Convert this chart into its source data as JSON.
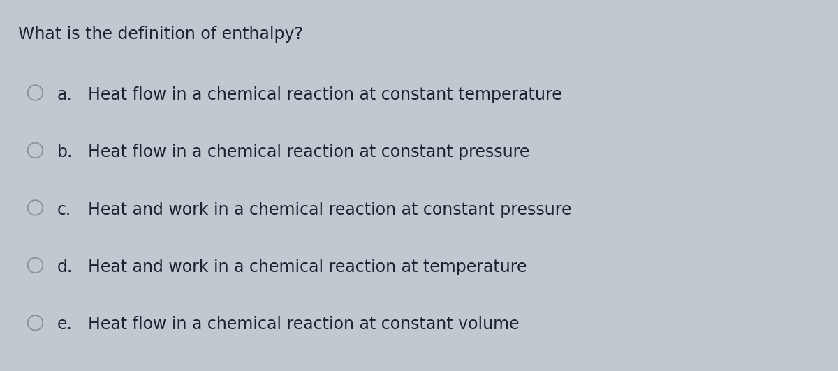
{
  "question": "What is the definition of enthalpy?",
  "options": [
    {
      "label": "a.",
      "text": "Heat flow in a chemical reaction at constant temperature"
    },
    {
      "label": "b.",
      "text": "Heat flow in a chemical reaction at constant pressure"
    },
    {
      "label": "c.",
      "text": "Heat and work in a chemical reaction at constant pressure"
    },
    {
      "label": "d.",
      "text": "Heat and work in a chemical reaction at temperature"
    },
    {
      "label": "e.",
      "text": "Heat flow in a chemical reaction at constant volume"
    }
  ],
  "bg_color": "#c2c8d0",
  "text_color": "#1c2333",
  "question_fontsize": 17,
  "option_label_fontsize": 17,
  "option_text_fontsize": 17,
  "circle_color": "#8a8e96",
  "fig_width": 12.0,
  "fig_height": 5.32
}
